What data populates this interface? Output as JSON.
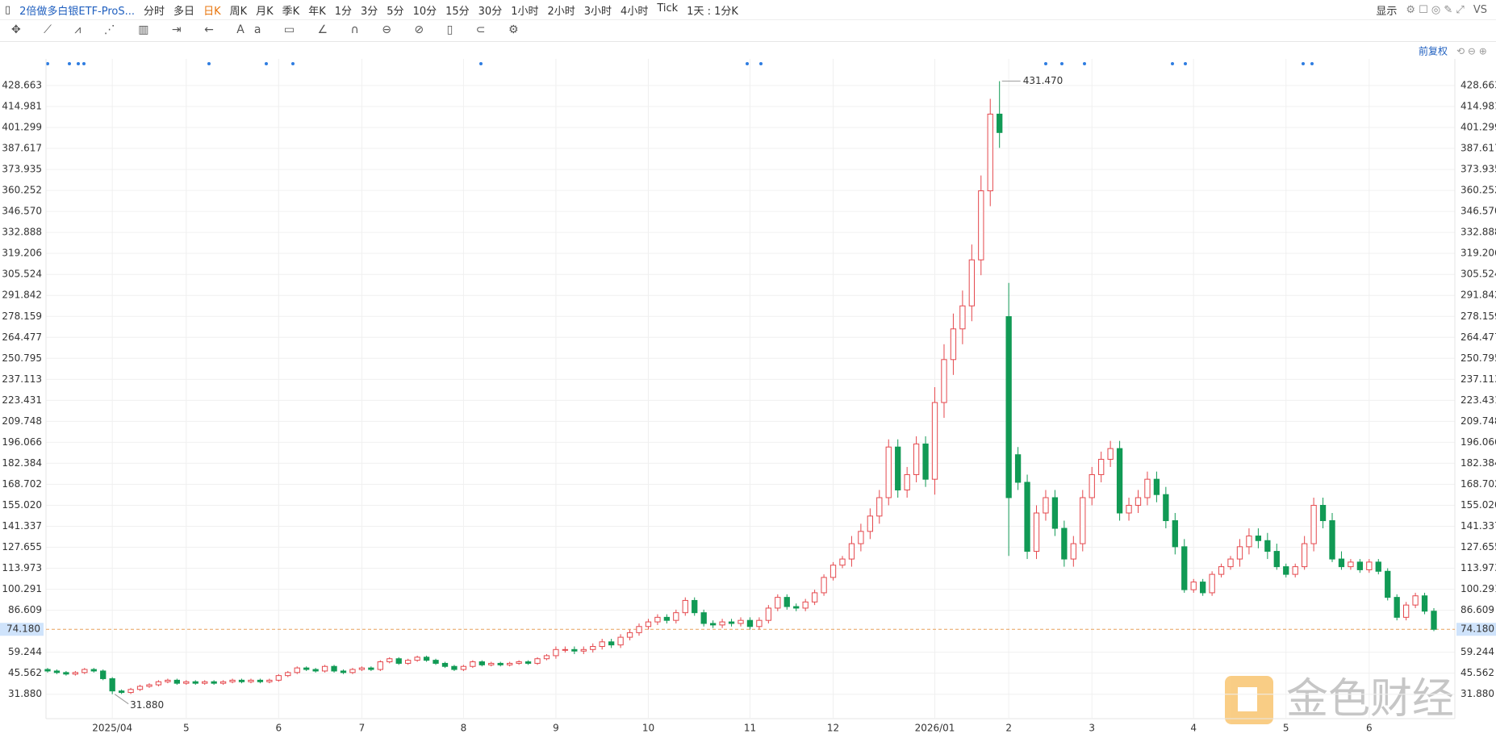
{
  "toolbar": {
    "symbol": "2倍做多白银ETF-ProS...",
    "periods": [
      "分时",
      "多日",
      "日K",
      "周K",
      "月K",
      "季K",
      "年K",
      "1分",
      "3分",
      "5分",
      "10分",
      "15分",
      "30分",
      "1小时",
      "2小时",
      "3小时",
      "4小时",
      "Tick"
    ],
    "active_period_index": 2,
    "interval": "1天 : 1分K",
    "display": "显示",
    "vs": "VS"
  },
  "adjust": "前复权",
  "watermark": "金色财经",
  "chart_data": {
    "type": "candlestick",
    "categories": [
      null,
      null,
      null,
      null,
      null,
      null,
      null,
      "2025/04",
      null,
      null,
      null,
      null,
      null,
      null,
      null,
      "5",
      null,
      null,
      null,
      null,
      null,
      null,
      null,
      null,
      null,
      "6",
      null,
      null,
      null,
      null,
      null,
      null,
      null,
      null,
      "7",
      null,
      null,
      null,
      null,
      null,
      null,
      null,
      null,
      null,
      null,
      "8",
      null,
      null,
      null,
      null,
      null,
      null,
      null,
      null,
      null,
      "9",
      null,
      null,
      null,
      null,
      null,
      null,
      null,
      null,
      null,
      "10",
      null,
      null,
      null,
      null,
      null,
      null,
      null,
      null,
      null,
      null,
      "11",
      null,
      null,
      null,
      null,
      null,
      null,
      null,
      null,
      "12",
      null,
      null,
      null,
      null,
      null,
      null,
      null,
      null,
      null,
      null,
      "2026/01",
      null,
      null,
      null,
      null,
      null,
      null,
      null,
      "2",
      null,
      null,
      null,
      null,
      null,
      null,
      null,
      null,
      "3",
      null,
      null,
      null,
      null,
      null,
      null,
      null,
      null,
      null,
      null,
      "4",
      null,
      null,
      null,
      null,
      null,
      null,
      null,
      null,
      null,
      "5",
      null,
      null,
      null,
      null,
      null,
      null,
      null,
      null,
      "6",
      null,
      null,
      null,
      null,
      null,
      null,
      null
    ],
    "open": [
      48,
      47,
      46,
      45,
      46,
      48,
      47,
      42,
      34,
      33,
      35,
      37,
      38,
      40,
      41,
      39,
      40,
      39,
      40,
      39,
      40,
      41,
      40,
      41,
      40,
      41,
      44,
      46,
      49,
      48,
      47,
      50,
      47,
      46,
      48,
      49,
      48,
      53,
      55,
      52,
      54,
      56,
      54,
      52,
      50,
      48,
      50,
      53,
      51,
      52,
      51,
      52,
      53,
      52,
      55,
      57,
      61,
      61,
      60,
      61,
      63,
      66,
      64,
      69,
      72,
      76,
      79,
      82,
      80,
      85,
      93,
      85,
      78,
      77,
      79,
      78,
      80,
      76,
      80,
      88,
      95,
      89,
      88,
      92,
      98,
      108,
      116,
      120,
      130,
      138,
      148,
      160,
      193,
      165,
      175,
      195,
      172,
      222,
      250,
      270,
      285,
      315,
      360,
      410,
      278,
      188,
      170,
      125,
      150,
      160,
      140,
      120,
      130,
      160,
      175,
      185,
      192,
      150,
      155,
      160,
      172,
      162,
      145,
      128,
      100,
      105,
      98,
      110,
      115,
      120,
      128,
      135,
      132,
      125,
      115,
      110,
      115,
      130,
      155,
      145,
      120,
      115,
      118,
      113,
      118,
      112,
      95,
      82,
      90,
      96,
      86
    ],
    "high": [
      49,
      48,
      47,
      47,
      49,
      49,
      48,
      43,
      35,
      36,
      38,
      39,
      41,
      42,
      42,
      41,
      41,
      41,
      41,
      41,
      42,
      42,
      42,
      42,
      42,
      45,
      47,
      50,
      50,
      49,
      51,
      51,
      48,
      49,
      50,
      50,
      54,
      56,
      56,
      55,
      57,
      57,
      55,
      53,
      51,
      51,
      54,
      54,
      53,
      53,
      53,
      54,
      54,
      56,
      58,
      63,
      63,
      63,
      63,
      65,
      68,
      68,
      71,
      74,
      78,
      81,
      84,
      84,
      87,
      95,
      95,
      87,
      80,
      81,
      81,
      82,
      82,
      82,
      90,
      97,
      97,
      91,
      94,
      100,
      110,
      118,
      122,
      135,
      143,
      153,
      165,
      198,
      198,
      180,
      200,
      200,
      232,
      260,
      280,
      295,
      325,
      370,
      420,
      431.47,
      300,
      193,
      175,
      155,
      165,
      165,
      145,
      135,
      165,
      180,
      190,
      197,
      197,
      160,
      165,
      177,
      177,
      167,
      150,
      133,
      107,
      107,
      112,
      117,
      122,
      133,
      140,
      140,
      137,
      130,
      117,
      117,
      135,
      160,
      160,
      150,
      125,
      120,
      120,
      120,
      120,
      114,
      97,
      92,
      98,
      98,
      88
    ],
    "low": [
      46,
      45,
      44,
      44,
      45,
      46,
      41,
      31.88,
      32,
      32,
      34,
      36,
      37,
      39,
      38,
      38,
      38,
      38,
      38,
      38,
      39,
      39,
      39,
      39,
      39,
      40,
      43,
      45,
      47,
      46,
      46,
      46,
      45,
      45,
      47,
      47,
      47,
      52,
      51,
      51,
      53,
      53,
      51,
      49,
      47,
      47,
      49,
      50,
      50,
      50,
      50,
      51,
      51,
      51,
      54,
      55,
      59,
      58,
      58,
      59,
      61,
      62,
      62,
      67,
      70,
      74,
      77,
      78,
      78,
      83,
      83,
      76,
      75,
      75,
      76,
      76,
      74,
      74,
      78,
      86,
      87,
      86,
      86,
      90,
      96,
      106,
      114,
      115,
      125,
      133,
      143,
      155,
      160,
      160,
      170,
      167,
      162,
      212,
      240,
      260,
      275,
      305,
      350,
      388,
      122,
      165,
      120,
      120,
      145,
      135,
      115,
      115,
      125,
      155,
      170,
      180,
      145,
      145,
      150,
      155,
      157,
      140,
      123,
      98,
      98,
      96,
      96,
      108,
      113,
      115,
      123,
      127,
      120,
      113,
      108,
      108,
      113,
      125,
      140,
      118,
      113,
      113,
      111,
      111,
      110,
      93,
      80,
      80,
      88,
      84,
      73
    ],
    "close": [
      47,
      46,
      45,
      46,
      48,
      47,
      42,
      34,
      33,
      35,
      37,
      38,
      40,
      41,
      39,
      40,
      39,
      40,
      39,
      40,
      41,
      40,
      41,
      40,
      41,
      44,
      46,
      49,
      48,
      47,
      50,
      47,
      46,
      48,
      49,
      48,
      53,
      55,
      52,
      54,
      56,
      54,
      52,
      50,
      48,
      50,
      53,
      51,
      52,
      51,
      52,
      53,
      52,
      55,
      57,
      61,
      61,
      60,
      61,
      63,
      66,
      64,
      69,
      72,
      76,
      79,
      82,
      80,
      85,
      93,
      85,
      78,
      77,
      79,
      78,
      80,
      76,
      80,
      88,
      95,
      89,
      88,
      92,
      98,
      108,
      116,
      120,
      130,
      138,
      148,
      160,
      193,
      165,
      175,
      195,
      172,
      222,
      250,
      270,
      285,
      315,
      360,
      410,
      398,
      160,
      170,
      125,
      150,
      160,
      140,
      120,
      130,
      160,
      175,
      185,
      192,
      150,
      155,
      160,
      172,
      162,
      145,
      128,
      100,
      105,
      98,
      110,
      115,
      120,
      128,
      135,
      132,
      125,
      115,
      110,
      115,
      130,
      155,
      145,
      120,
      115,
      118,
      113,
      118,
      112,
      95,
      82,
      90,
      96,
      86,
      74.18
    ],
    "up_color": "#e5484d",
    "down_color": "#119a55",
    "ylim": [
      17,
      446
    ],
    "yticks": [
      {
        "value": 31.88,
        "label": "31.880"
      },
      {
        "value": 45.562,
        "label": "45.562"
      },
      {
        "value": 59.244,
        "label": "59.244"
      },
      {
        "value": 86.609,
        "label": "86.609"
      },
      {
        "value": 100.291,
        "label": "100.291"
      },
      {
        "value": 113.973,
        "label": "113.973"
      },
      {
        "value": 127.655,
        "label": "127.655"
      },
      {
        "value": 141.337,
        "label": "141.337"
      },
      {
        "value": 155.02,
        "label": "155.020"
      },
      {
        "value": 168.702,
        "label": "168.702"
      },
      {
        "value": 182.384,
        "label": "182.384"
      },
      {
        "value": 196.066,
        "label": "196.066"
      },
      {
        "value": 209.748,
        "label": "209.748"
      },
      {
        "value": 223.431,
        "label": "223.431"
      },
      {
        "value": 237.113,
        "label": "237.113"
      },
      {
        "value": 250.795,
        "label": "250.795"
      },
      {
        "value": 264.477,
        "label": "264.477"
      },
      {
        "value": 278.159,
        "label": "278.159"
      },
      {
        "value": 291.842,
        "label": "291.842"
      },
      {
        "value": 305.524,
        "label": "305.524"
      },
      {
        "value": 319.206,
        "label": "319.206"
      },
      {
        "value": 332.888,
        "label": "332.888"
      },
      {
        "value": 346.57,
        "label": "346.570"
      },
      {
        "value": 360.252,
        "label": "360.252"
      },
      {
        "value": 373.935,
        "label": "373.935"
      },
      {
        "value": 387.617,
        "label": "387.617"
      },
      {
        "value": 401.299,
        "label": "401.299"
      },
      {
        "value": 414.981,
        "label": "414.981"
      },
      {
        "value": 428.663,
        "label": "428.663"
      }
    ],
    "grid": true,
    "last_price": {
      "value": 74.18,
      "label": "74.180"
    },
    "max_label": "431.470",
    "min_label": "31.880"
  }
}
